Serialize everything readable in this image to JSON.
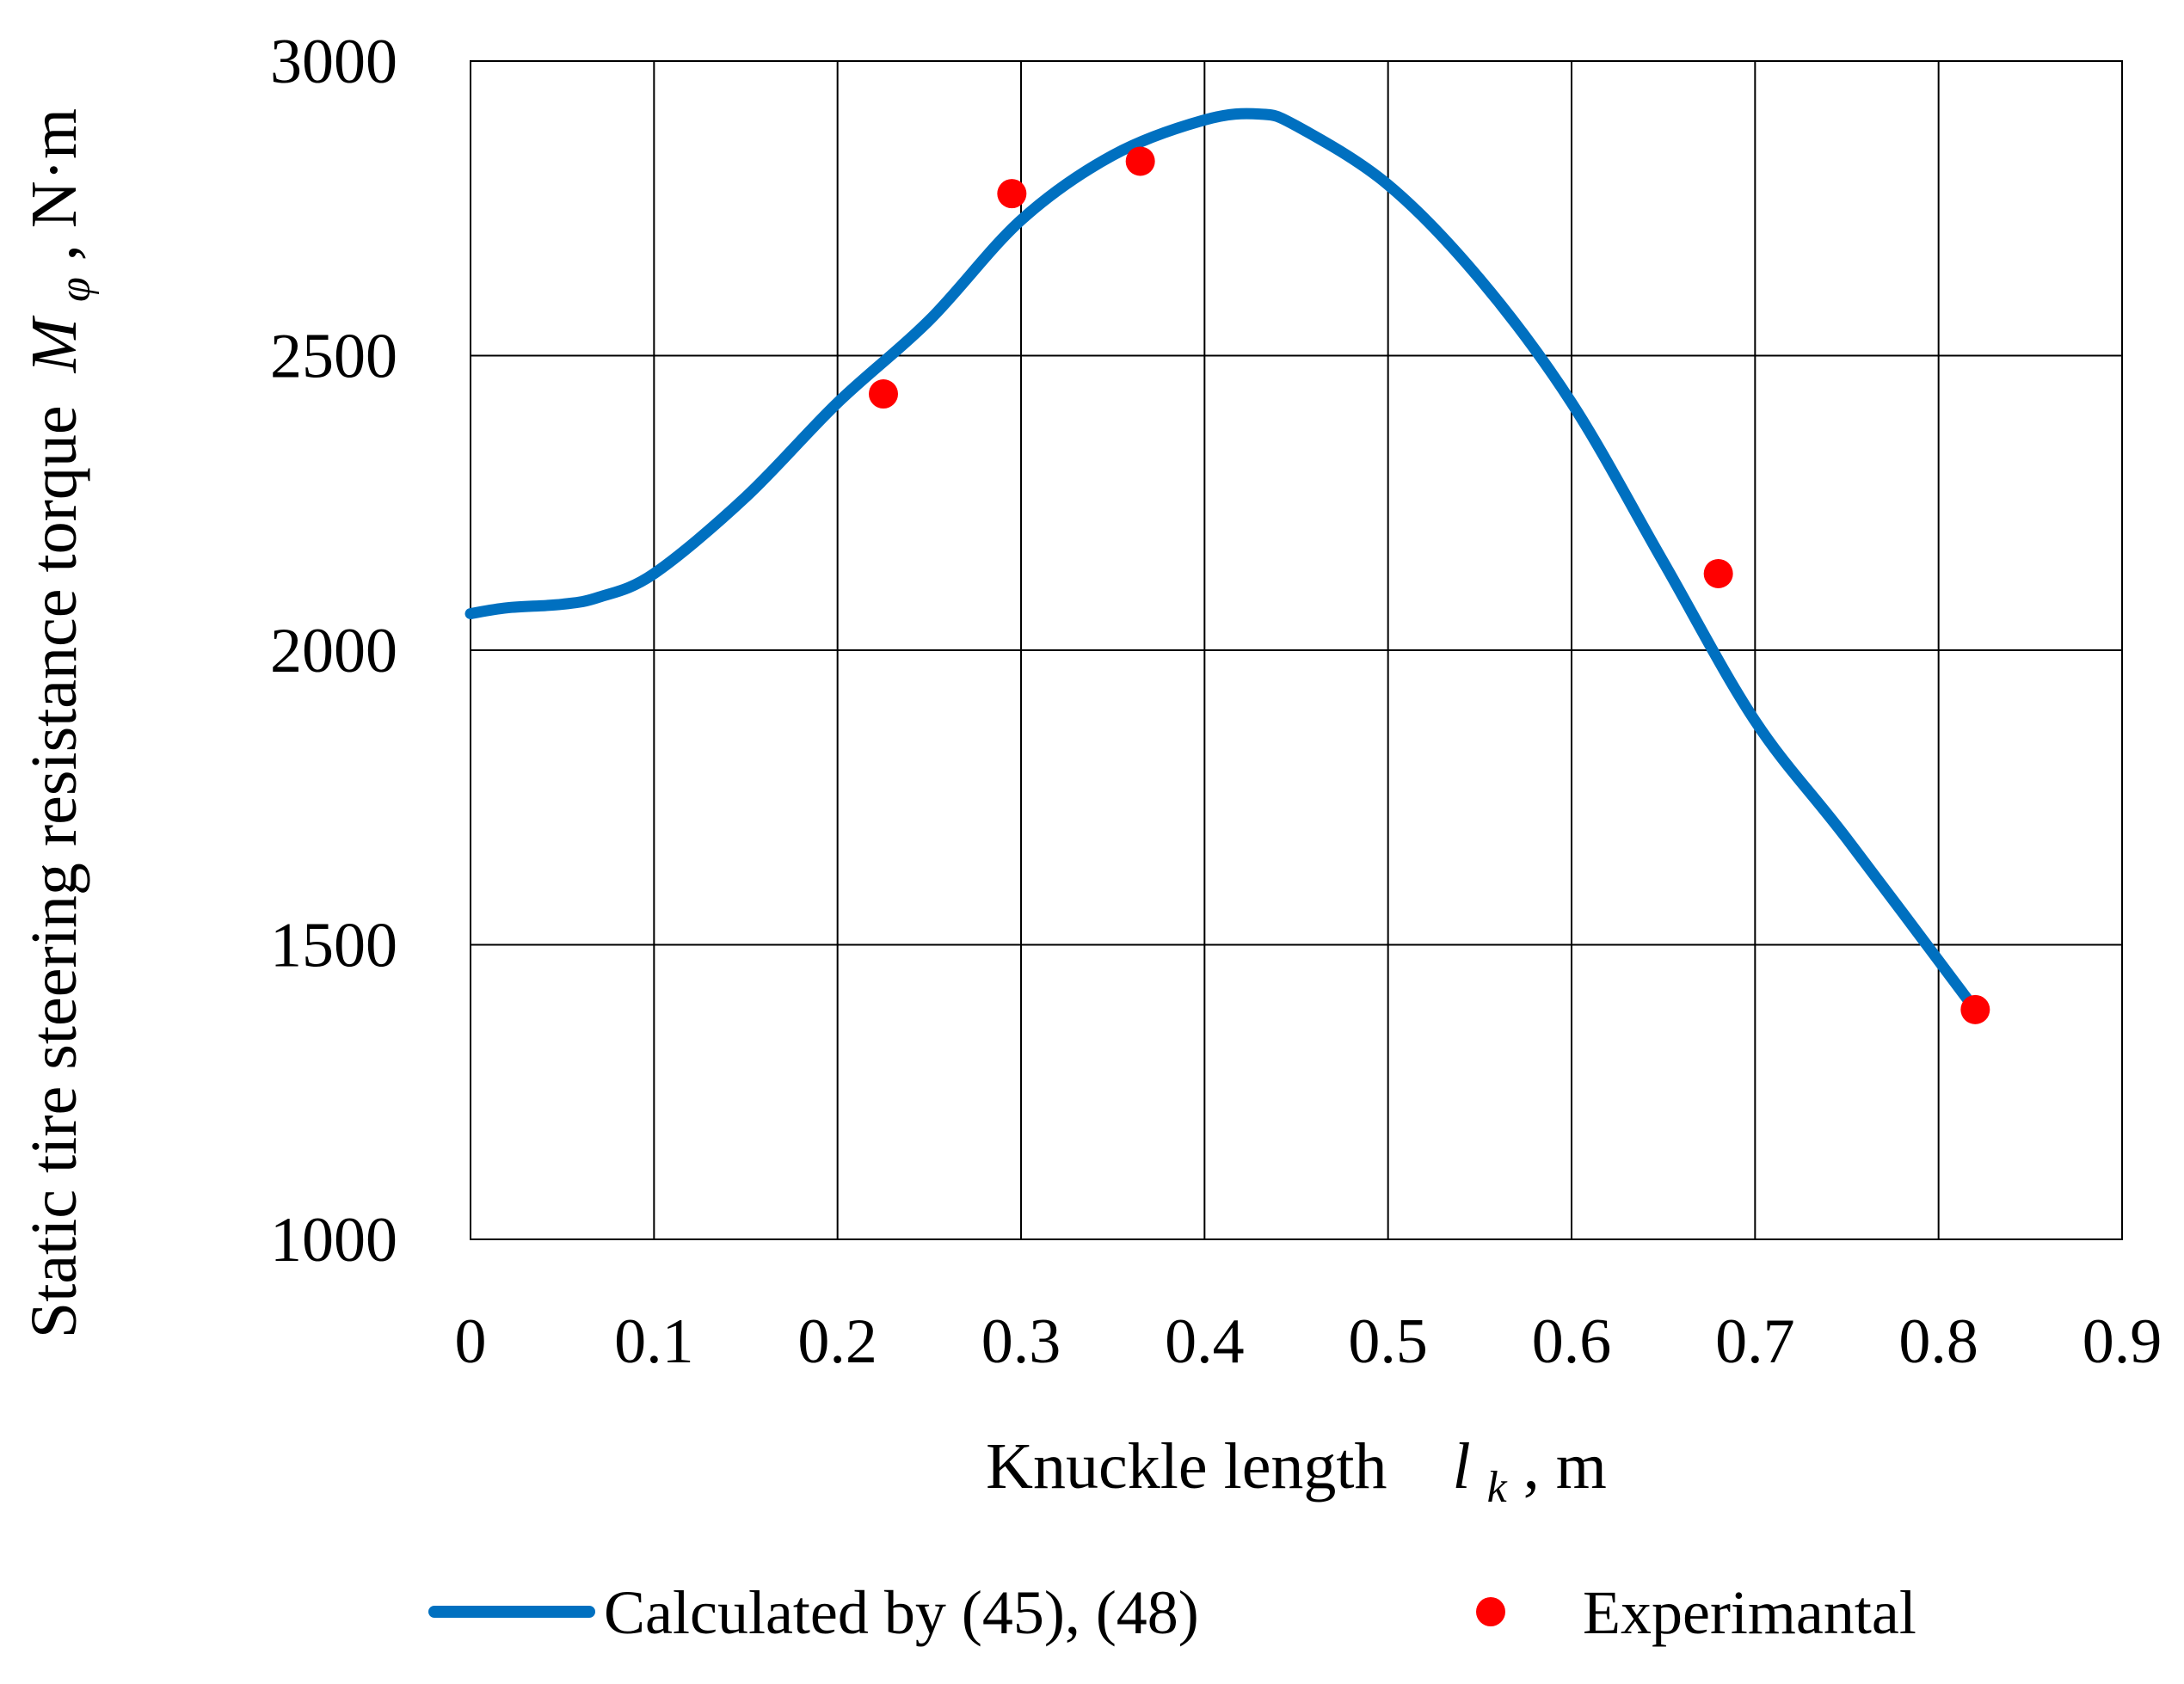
{
  "chart_data": {
    "type": "line",
    "title": "",
    "xlabel": {
      "main": "Knuckle length",
      "var": "l",
      "sub": "k",
      "unit": ", m"
    },
    "ylabel": {
      "main": "Static tire steering resistance torque ",
      "var": "M",
      "sub": "φ",
      "unit": ", N·m"
    },
    "xlim": [
      0,
      0.9
    ],
    "ylim": [
      1000,
      3000
    ],
    "xticks": [
      "0",
      "0.1",
      "0.2",
      "0.3",
      "0.4",
      "0.5",
      "0.6",
      "0.7",
      "0.8",
      "0.9"
    ],
    "yticks": [
      "1000",
      "1500",
      "2000",
      "2500",
      "3000"
    ],
    "grid": true,
    "legend_position": "bottom",
    "series": [
      {
        "name": "Calculated by (45), (48)",
        "kind": "line",
        "color": "#0070C0",
        "x": [
          0,
          0.02,
          0.05,
          0.07,
          0.1,
          0.15,
          0.2,
          0.25,
          0.3,
          0.35,
          0.4,
          0.43,
          0.45,
          0.5,
          0.55,
          0.6,
          0.65,
          0.7,
          0.75,
          0.82
        ],
        "y": [
          2062,
          2072,
          2078,
          2090,
          2130,
          2260,
          2420,
          2560,
          2730,
          2840,
          2900,
          2910,
          2890,
          2790,
          2630,
          2420,
          2150,
          1880,
          1680,
          1390
        ]
      },
      {
        "name": "Experimantal",
        "kind": "scatter",
        "color": "#FF0000",
        "x": [
          0.225,
          0.295,
          0.365,
          0.68,
          0.82
        ],
        "y": [
          2435,
          2775,
          2830,
          2130,
          1390
        ]
      }
    ]
  }
}
